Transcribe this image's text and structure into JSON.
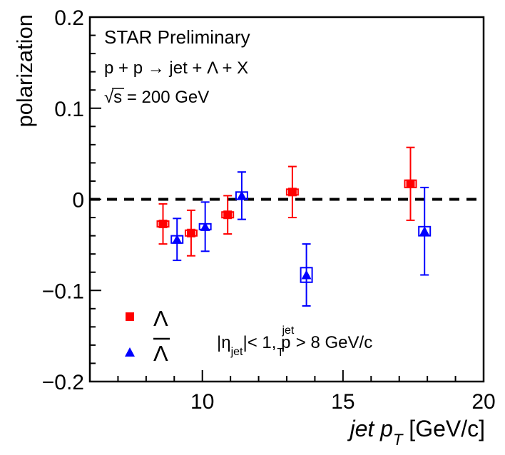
{
  "chart_data": {
    "type": "scatter",
    "x": [],
    "xlabel_main": "jet p",
    "xlabel_sub": "T",
    "xlabel_unit": " [GeV/c]",
    "ylabel": "polarization",
    "xlim": [
      6.0,
      20.0
    ],
    "ylim": [
      -0.2,
      0.2
    ],
    "x_ticks": [
      10,
      15,
      20
    ],
    "y_ticks": [
      {
        "value": 0.2,
        "label": "0.2"
      },
      {
        "value": 0.1,
        "label": "0.1"
      },
      {
        "value": 0.0,
        "label": "0"
      },
      {
        "value": -0.1,
        "label": "−0.1"
      },
      {
        "value": -0.2,
        "label": "−0.2"
      }
    ],
    "reference_line": {
      "y": 0,
      "style": "dashed",
      "color": "#000000"
    },
    "annotations": {
      "line1": "STAR Preliminary",
      "line2": "p + p → jet + Λ + X",
      "line3_root": "√",
      "line3_s": "s",
      "line3_rest": " = 200 GeV"
    },
    "cut": {
      "eta_open": "|η",
      "eta_sub": "jet",
      "eta_close": "|< 1, p",
      "pt_sup": "jet",
      "pt_sub": "T",
      "pt_rest": " > 8 GeV/c"
    },
    "legend": {
      "placement": "bottom-left"
    },
    "series": [
      {
        "name": "Λ",
        "marker": "square",
        "color": "#ff0000",
        "points": [
          {
            "x": 8.6,
            "y": -0.027,
            "err": 0.022,
            "sys": 0.003
          },
          {
            "x": 9.6,
            "y": -0.037,
            "err": 0.025,
            "sys": 0.003
          },
          {
            "x": 10.9,
            "y": -0.017,
            "err": 0.021,
            "sys": 0.003
          },
          {
            "x": 13.2,
            "y": 0.008,
            "err": 0.028,
            "sys": 0.003
          },
          {
            "x": 17.4,
            "y": 0.017,
            "err": 0.04,
            "sys": 0.004
          }
        ]
      },
      {
        "name": "Λ",
        "name_overline": true,
        "marker": "triangle",
        "color": "#0000ff",
        "points": [
          {
            "x": 9.1,
            "y": -0.044,
            "err": 0.023,
            "sys": 0.004
          },
          {
            "x": 10.1,
            "y": -0.03,
            "err": 0.027,
            "sys": 0.003
          },
          {
            "x": 11.4,
            "y": 0.004,
            "err": 0.026,
            "sys": 0.004
          },
          {
            "x": 13.7,
            "y": -0.083,
            "err": 0.034,
            "sys": 0.008
          },
          {
            "x": 17.9,
            "y": -0.035,
            "err": 0.048,
            "sys": 0.005
          }
        ]
      }
    ]
  }
}
